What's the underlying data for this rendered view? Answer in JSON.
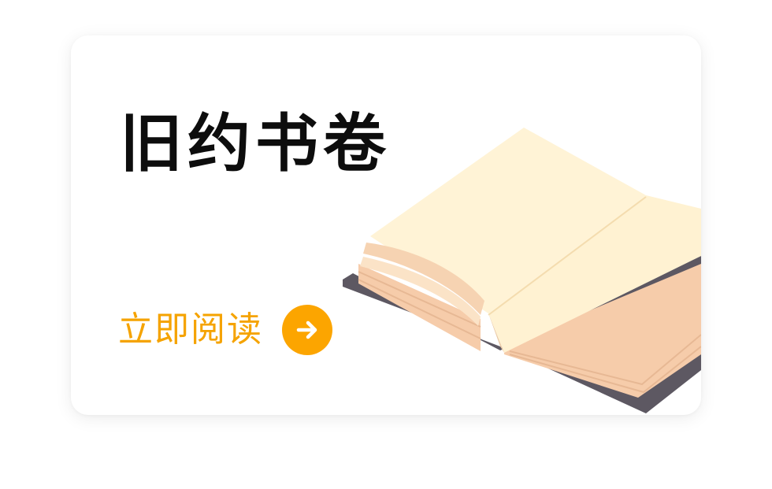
{
  "card": {
    "title": "旧约书卷",
    "cta_label": "立即阅读"
  },
  "icons": {
    "cta": "arrow-right-icon",
    "illustration": "open-book-illustration"
  },
  "colors": {
    "title": "#0d0d0d",
    "accent": "#f5a300",
    "accent_circle": "#fca500",
    "page": "#fff3d6",
    "page_edges": "#f5cba6",
    "cover": "#5d5862"
  }
}
